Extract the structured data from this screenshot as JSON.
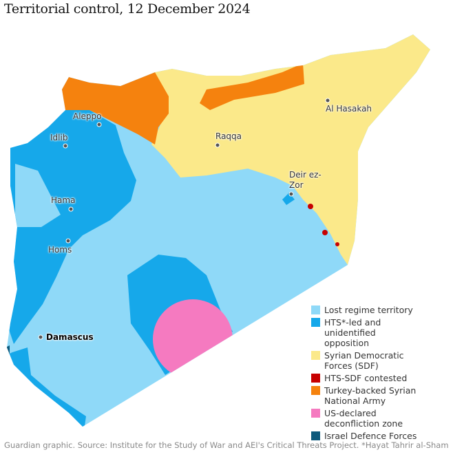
{
  "title": "Territorial control, 12 December 2024",
  "legend": [
    {
      "label": "Lost regime territory",
      "color": "#8fd9f8"
    },
    {
      "label": "HTS*-led and unidentified opposition",
      "color": "#16a8ea"
    },
    {
      "label": "Syrian Democratic Forces (SDF)",
      "color": "#fbe98a"
    },
    {
      "label": "HTS-SDF contested",
      "color": "#c70000"
    },
    {
      "label": "Turkey-backed Syrian National Army",
      "color": "#f5820e"
    },
    {
      "label": "US-declared deconfliction zone",
      "color": "#f57ac0"
    },
    {
      "label": "Israel Defence Forces",
      "color": "#0e5a7c"
    }
  ],
  "cities": [
    {
      "name": "Aleppo"
    },
    {
      "name": "Idlib"
    },
    {
      "name": "Hama"
    },
    {
      "name": "Homs"
    },
    {
      "name": "Damascus"
    },
    {
      "name": "Raqqa"
    },
    {
      "name": "Al Hasakah"
    },
    {
      "name": "Deir ez-Zor"
    }
  ],
  "source": "Guardian graphic. Source: Institute for the Study of War and AEI's Critical Threats Project. *Hayat Tahrir al-Sham"
}
